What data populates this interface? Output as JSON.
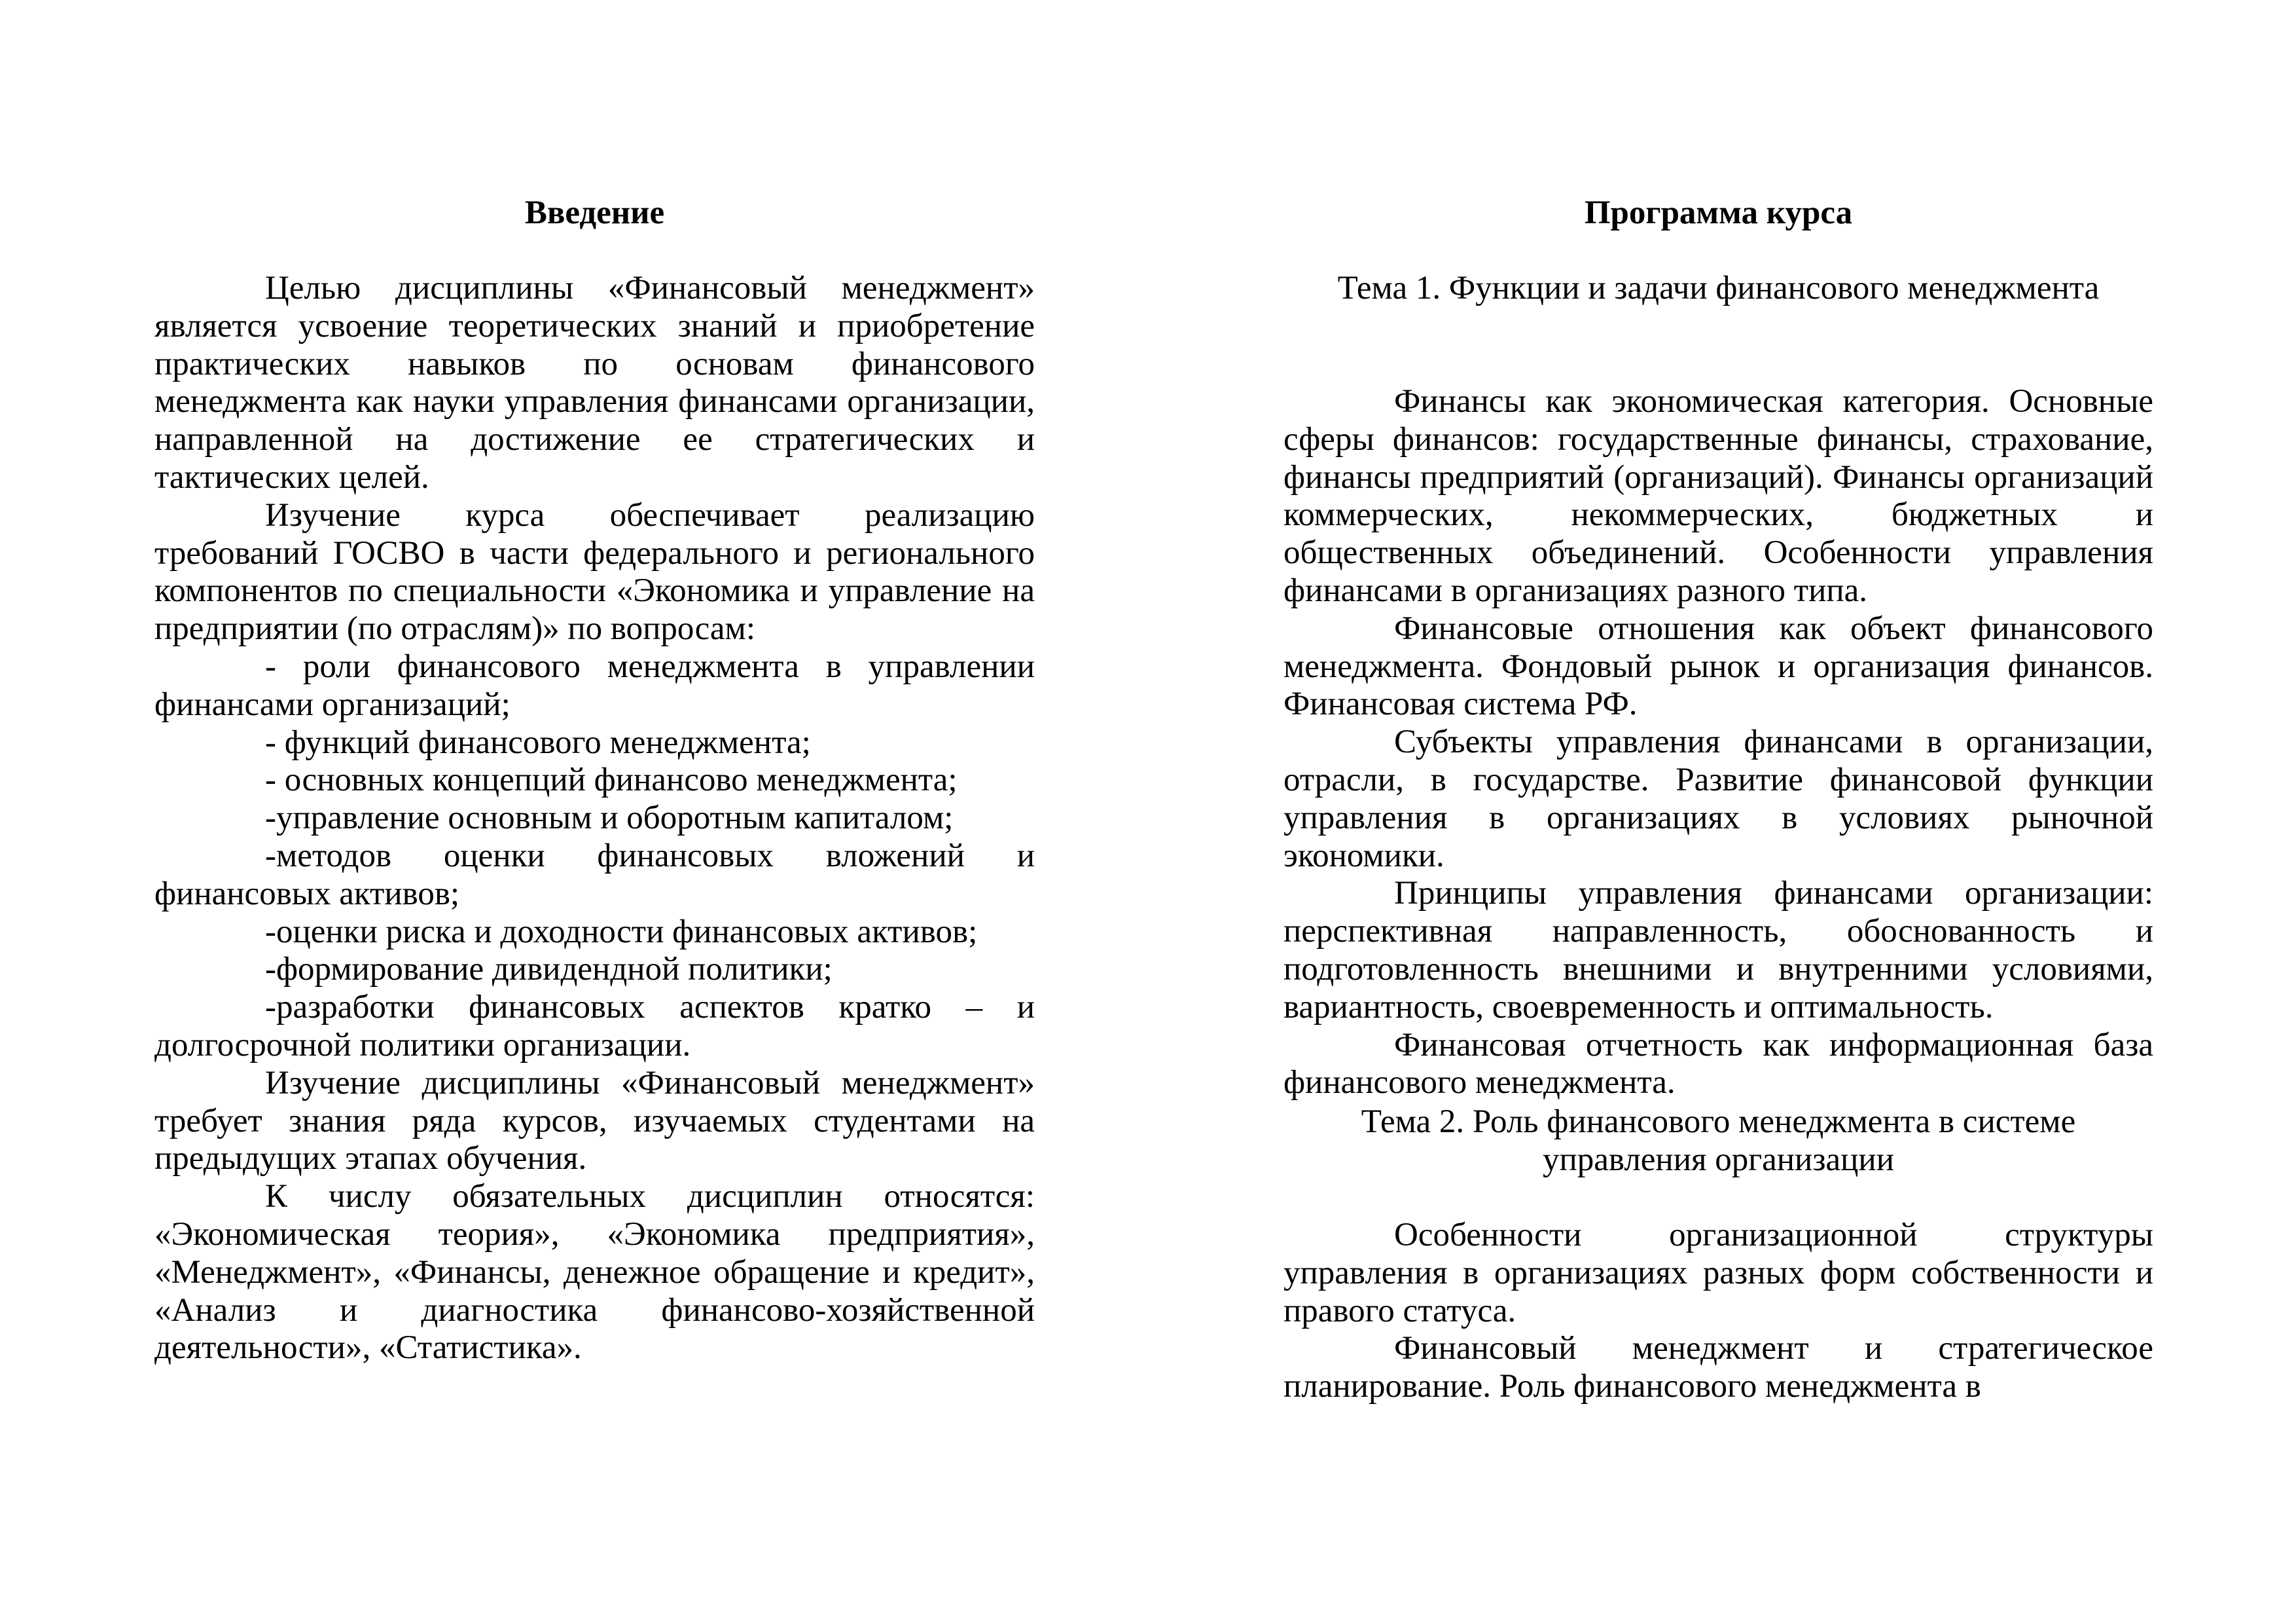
{
  "left_page": {
    "title": "Введение",
    "paragraphs": [
      "Целью дисциплины «Финансовый менеджмент» является усвоение теоретических знаний и приобретение практических навыков по основам финансового менеджмента как науки управления финансами организации, направленной на достижение ее стратегических и тактических целей.",
      "Изучение курса обеспечивает реализацию требований ГОСВО в части федерального и регионального компонентов по специальности «Экономика и управление на предприятии (по отраслям)» по вопросам:",
      "- роли финансового менеджмента в управлении финансами организаций;",
      "- функций финансового менеджмента;",
      "- основных концепций финансово менеджмента;",
      "-управление основным и оборотным капиталом;",
      "-методов оценки финансовых вложений и финансовых активов;",
      "-оценки риска и доходности финансовых активов;",
      "-формирование дивидендной политики;",
      " -разработки финансовых аспектов кратко – и долгосрочной политики организации.",
      "Изучение дисциплины «Финансовый менеджмент» требует знания ряда курсов, изучаемых студентами на предыдущих этапах обучения.",
      "К числу обязательных дисциплин относятся: «Экономическая теория», «Экономика предприятия», «Менеджмент», «Финансы, денежное обращение и кредит», «Анализ и диагностика финансово-хозяйственной деятельности», «Статистика»."
    ]
  },
  "right_page": {
    "title": "Программа курса",
    "topic1": {
      "heading": "Тема 1. Функции и задачи финансового менеджмента",
      "paragraphs": [
        "Финансы как экономическая категория. Основные сферы финансов: государственные финансы, страхование, финансы предприятий (организаций). Финансы организаций коммерческих, некоммерческих, бюджетных и общественных объединений. Особенности управления финансами в организациях разного типа.",
        "Финансовые отношения как объект финансового менеджмента. Фондовый рынок и организация финансов. Финансовая система РФ.",
        "Субъекты управления финансами в организации, отрасли, в государстве. Развитие финансовой функции управления в организациях в условиях рыночной экономики.",
        "Принципы управления финансами организации: перспективная направленность, обоснованность и подготовленность внешними и внутренними условиями, вариантность, своевременность и оптимальность.",
        "Финансовая отчетность как информационная база финансового менеджмента."
      ]
    },
    "topic2": {
      "heading": "Тема 2. Роль финансового менеджмента в системе управления организации",
      "paragraphs": [
        "Особенности организационной структуры управления в организациях разных форм собственности и правого статуса.",
        "Финансовый менеджмент и стратегическое планирование. Роль финансового менеджмента в"
      ]
    }
  }
}
